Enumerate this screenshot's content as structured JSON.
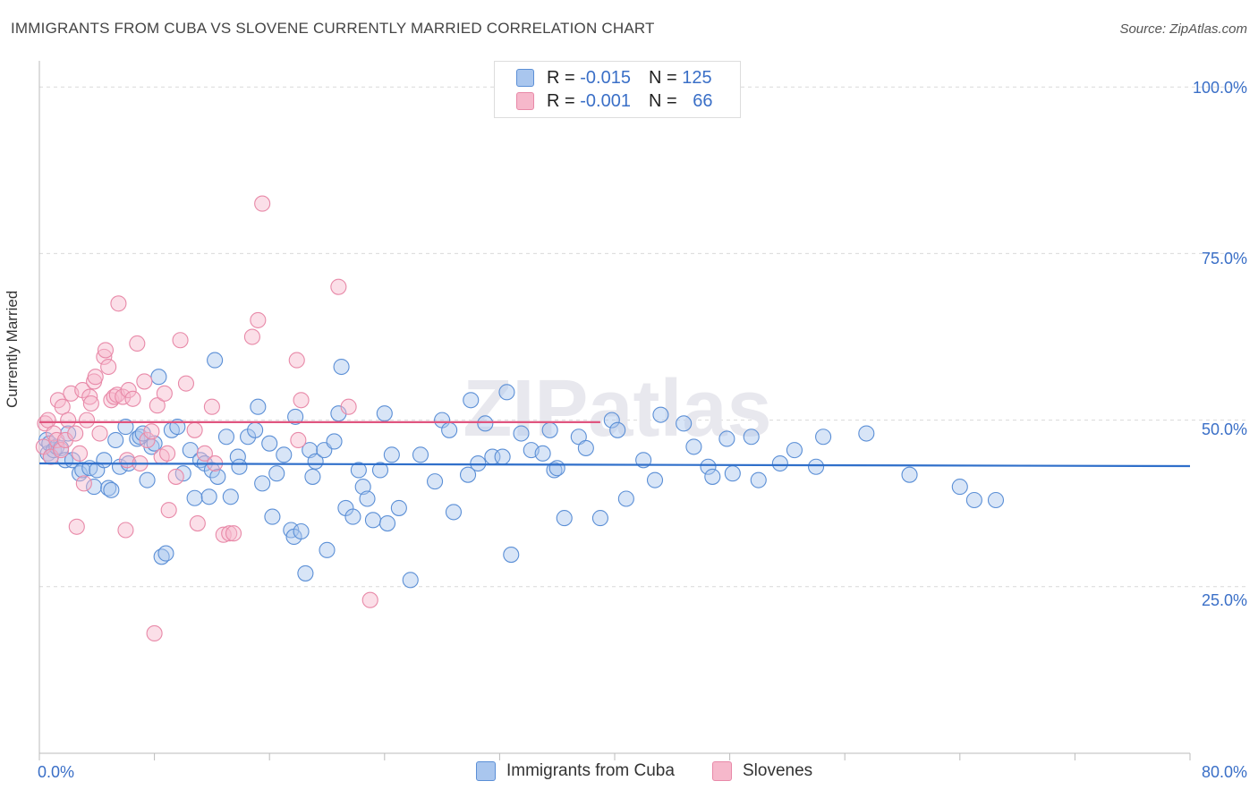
{
  "title": "IMMIGRANTS FROM CUBA VS SLOVENE CURRENTLY MARRIED CORRELATION CHART",
  "source": "Source: ZipAtlas.com",
  "watermark": "ZIPatlas",
  "legend": {
    "row1": {
      "r_label": "R =",
      "r_value": "-0.015",
      "n_label": "N =",
      "n_value": "125"
    },
    "row2": {
      "r_label": "R =",
      "r_value": "-0.001",
      "n_label": "N =",
      "n_value": "66"
    }
  },
  "colors": {
    "blue_fill": "#a9c6ee",
    "blue_stroke": "#5b8fd6",
    "blue_line": "#2f6fca",
    "pink_fill": "#f6b8cb",
    "pink_stroke": "#e889a8",
    "pink_line": "#e0557f",
    "grid": "#d9d9d9",
    "tick_text": "#3a6fc7"
  },
  "chart_data": {
    "type": "scatter",
    "title": "IMMIGRANTS FROM CUBA VS SLOVENE CURRENTLY MARRIED CORRELATION CHART",
    "xlabel": "",
    "ylabel": "Currently Married",
    "xlim": [
      0,
      80
    ],
    "ylim": [
      0,
      105
    ],
    "x_tick_labels": [
      "0.0%",
      "80.0%"
    ],
    "y_ticks": [
      25,
      50,
      75,
      100
    ],
    "y_tick_labels": [
      "25.0%",
      "50.0%",
      "75.0%",
      "100.0%"
    ],
    "legend_position": "bottom",
    "grid": true,
    "series": [
      {
        "name": "Immigrants from Cuba",
        "color": "#a9c6ee",
        "trend": {
          "x": [
            0,
            80
          ],
          "y": [
            43.5,
            43.1
          ]
        },
        "points": [
          [
            0.5,
            47
          ],
          [
            0.6,
            45
          ],
          [
            0.7,
            46.5
          ],
          [
            0.8,
            44.5
          ],
          [
            1.0,
            45.5
          ],
          [
            1.2,
            46
          ],
          [
            1.5,
            45.8
          ],
          [
            1.8,
            44
          ],
          [
            2.0,
            48
          ],
          [
            2.3,
            44
          ],
          [
            2.8,
            42
          ],
          [
            3.0,
            42.5
          ],
          [
            3.5,
            42.8
          ],
          [
            3.8,
            40
          ],
          [
            4.0,
            42.5
          ],
          [
            4.5,
            44
          ],
          [
            4.8,
            39.8
          ],
          [
            5.0,
            39.5
          ],
          [
            5.3,
            47
          ],
          [
            5.6,
            43
          ],
          [
            6.0,
            49
          ],
          [
            6.2,
            43.5
          ],
          [
            6.8,
            47.2
          ],
          [
            7.0,
            47.5
          ],
          [
            7.2,
            48
          ],
          [
            7.5,
            41
          ],
          [
            7.8,
            46
          ],
          [
            8.0,
            46.5
          ],
          [
            8.3,
            56.5
          ],
          [
            8.5,
            29.5
          ],
          [
            8.8,
            30
          ],
          [
            9.2,
            48.5
          ],
          [
            9.6,
            49
          ],
          [
            10.0,
            42
          ],
          [
            10.5,
            45.5
          ],
          [
            10.8,
            38.3
          ],
          [
            11.2,
            44
          ],
          [
            11.5,
            43.5
          ],
          [
            12.0,
            42.5
          ],
          [
            12.4,
            41.5
          ],
          [
            11.8,
            38.5
          ],
          [
            12.2,
            59
          ],
          [
            13.0,
            47.5
          ],
          [
            13.3,
            38.5
          ],
          [
            13.8,
            44.5
          ],
          [
            13.9,
            43
          ],
          [
            14.5,
            47.5
          ],
          [
            15.0,
            48.5
          ],
          [
            15.2,
            52
          ],
          [
            15.5,
            40.5
          ],
          [
            16.0,
            46.5
          ],
          [
            16.2,
            35.5
          ],
          [
            16.5,
            42
          ],
          [
            17.0,
            44.8
          ],
          [
            17.5,
            33.5
          ],
          [
            17.7,
            32.5
          ],
          [
            17.8,
            50.5
          ],
          [
            18.2,
            33.3
          ],
          [
            18.5,
            27
          ],
          [
            18.8,
            45.5
          ],
          [
            19.0,
            41.5
          ],
          [
            19.2,
            43.8
          ],
          [
            19.8,
            45.5
          ],
          [
            20.0,
            30.5
          ],
          [
            20.5,
            46.8
          ],
          [
            20.8,
            51
          ],
          [
            21.0,
            58
          ],
          [
            21.3,
            36.8
          ],
          [
            21.8,
            35.5
          ],
          [
            22.2,
            42.5
          ],
          [
            22.5,
            40
          ],
          [
            22.8,
            38.2
          ],
          [
            23.2,
            35
          ],
          [
            23.7,
            42.5
          ],
          [
            24.0,
            51
          ],
          [
            24.2,
            34.5
          ],
          [
            24.5,
            44.8
          ],
          [
            25.0,
            36.8
          ],
          [
            25.8,
            26
          ],
          [
            26.5,
            44.8
          ],
          [
            27.5,
            40.8
          ],
          [
            28.0,
            50
          ],
          [
            28.5,
            48.5
          ],
          [
            28.8,
            36.2
          ],
          [
            29.8,
            41.8
          ],
          [
            30.0,
            53
          ],
          [
            30.5,
            43.5
          ],
          [
            31.0,
            49.5
          ],
          [
            31.5,
            44.5
          ],
          [
            32.2,
            44.5
          ],
          [
            32.5,
            54.2
          ],
          [
            32.8,
            29.8
          ],
          [
            33.5,
            48
          ],
          [
            34.2,
            45.5
          ],
          [
            35.0,
            45
          ],
          [
            35.5,
            48.5
          ],
          [
            35.8,
            42.5
          ],
          [
            36.0,
            42.8
          ],
          [
            36.5,
            35.3
          ],
          [
            37.5,
            47.5
          ],
          [
            38.0,
            45.8
          ],
          [
            39.0,
            35.3
          ],
          [
            39.8,
            50
          ],
          [
            40.2,
            48.5
          ],
          [
            40.8,
            38.2
          ],
          [
            42.0,
            44
          ],
          [
            42.8,
            41
          ],
          [
            43.2,
            50.8
          ],
          [
            44.8,
            49.5
          ],
          [
            45.5,
            46
          ],
          [
            46.5,
            43
          ],
          [
            46.8,
            41.5
          ],
          [
            47.8,
            47.2
          ],
          [
            48.2,
            42
          ],
          [
            49.5,
            47.5
          ],
          [
            50.0,
            41
          ],
          [
            51.5,
            43.5
          ],
          [
            52.5,
            45.5
          ],
          [
            54.0,
            43
          ],
          [
            54.5,
            47.5
          ],
          [
            57.5,
            48
          ],
          [
            60.5,
            41.8
          ],
          [
            64.0,
            40
          ],
          [
            65.0,
            38
          ],
          [
            66.5,
            38
          ]
        ]
      },
      {
        "name": "Slovenes",
        "color": "#f6b8cb",
        "trend": {
          "x": [
            0,
            39
          ],
          "y": [
            49.7,
            49.7
          ]
        },
        "points": [
          [
            0.3,
            46
          ],
          [
            0.4,
            49.5
          ],
          [
            0.6,
            50
          ],
          [
            0.8,
            44.5
          ],
          [
            1.0,
            48
          ],
          [
            1.2,
            47
          ],
          [
            1.3,
            53
          ],
          [
            1.5,
            45.5
          ],
          [
            1.6,
            52
          ],
          [
            1.8,
            47
          ],
          [
            2.0,
            50
          ],
          [
            2.2,
            54
          ],
          [
            2.5,
            48
          ],
          [
            2.6,
            34
          ],
          [
            2.8,
            45
          ],
          [
            3.0,
            54.5
          ],
          [
            3.1,
            40.5
          ],
          [
            3.3,
            50
          ],
          [
            3.5,
            53.5
          ],
          [
            3.6,
            52.5
          ],
          [
            3.8,
            55.8
          ],
          [
            3.9,
            56.5
          ],
          [
            4.2,
            48
          ],
          [
            4.5,
            59.5
          ],
          [
            4.6,
            60.5
          ],
          [
            4.8,
            58
          ],
          [
            5.0,
            53
          ],
          [
            5.2,
            53.5
          ],
          [
            5.4,
            53.8
          ],
          [
            5.5,
            67.5
          ],
          [
            5.8,
            53.5
          ],
          [
            6.0,
            33.5
          ],
          [
            6.1,
            44
          ],
          [
            6.2,
            54.5
          ],
          [
            6.5,
            53.2
          ],
          [
            6.8,
            61.5
          ],
          [
            7.0,
            43.5
          ],
          [
            7.3,
            55.8
          ],
          [
            7.5,
            47
          ],
          [
            7.8,
            48.3
          ],
          [
            8.0,
            18
          ],
          [
            8.2,
            52.2
          ],
          [
            8.5,
            44.5
          ],
          [
            8.7,
            54
          ],
          [
            8.9,
            45
          ],
          [
            9.0,
            36.5
          ],
          [
            9.5,
            41.5
          ],
          [
            9.8,
            62
          ],
          [
            10.2,
            55.5
          ],
          [
            10.8,
            48.5
          ],
          [
            11.0,
            34.5
          ],
          [
            11.5,
            45
          ],
          [
            12.0,
            52
          ],
          [
            12.2,
            43.5
          ],
          [
            12.8,
            32.8
          ],
          [
            13.2,
            33
          ],
          [
            13.5,
            33
          ],
          [
            14.8,
            62.5
          ],
          [
            15.2,
            65
          ],
          [
            15.5,
            82.5
          ],
          [
            17.9,
            59
          ],
          [
            18.0,
            47
          ],
          [
            18.2,
            53
          ],
          [
            20.8,
            70
          ],
          [
            21.5,
            52
          ],
          [
            23.0,
            23
          ]
        ]
      }
    ]
  }
}
